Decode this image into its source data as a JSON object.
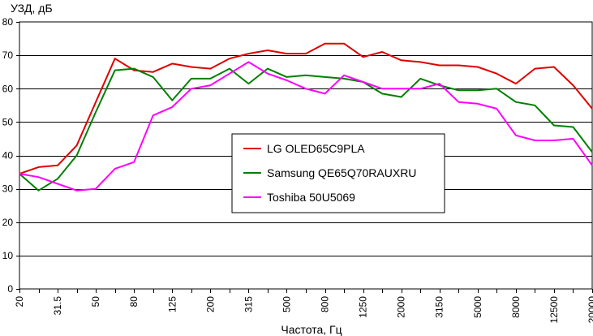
{
  "chart_data": {
    "type": "line",
    "ylabel": "УЗД, дБ",
    "xlabel": "Частота, Гц",
    "ylim": [
      0,
      80
    ],
    "yticks": [
      0,
      10,
      20,
      30,
      40,
      50,
      60,
      70,
      80
    ],
    "grid": true,
    "legend_position": "center",
    "categories": [
      20,
      25,
      31.5,
      40,
      50,
      63,
      80,
      100,
      125,
      160,
      200,
      250,
      315,
      400,
      500,
      630,
      800,
      1000,
      1250,
      1600,
      2000,
      2500,
      3150,
      4000,
      5000,
      6300,
      8000,
      10000,
      12500,
      16000,
      20000
    ],
    "category_labels": [
      "20",
      "",
      "31.5",
      "",
      "50",
      "",
      "80",
      "",
      "125",
      "",
      "200",
      "",
      "315",
      "",
      "500",
      "",
      "800",
      "",
      "1250",
      "",
      "2000",
      "",
      "3150",
      "",
      "5000",
      "",
      "8000",
      "",
      "12500",
      "",
      "20000"
    ],
    "series": [
      {
        "name": "LG OLED65C9PLA",
        "color": "#e00000",
        "values": [
          34.5,
          36.5,
          37,
          43,
          56,
          69,
          65.5,
          65,
          67.5,
          66.5,
          66,
          69,
          70.5,
          71.5,
          70.5,
          70.5,
          73.5,
          73.5,
          69.5,
          71,
          68.5,
          68,
          67,
          67,
          66.5,
          64.5,
          61.5,
          66,
          66.5,
          61,
          54
        ]
      },
      {
        "name": "Samsung QE65Q70RAUXRU",
        "color": "#008000",
        "values": [
          34.5,
          29.5,
          33,
          40,
          53,
          65.5,
          66,
          63.5,
          56.5,
          63,
          63,
          66,
          61.5,
          66,
          63.5,
          64,
          63.5,
          63,
          62,
          58.5,
          57.5,
          63,
          61,
          59.5,
          59.5,
          60,
          56,
          55,
          49,
          48.5,
          41
        ]
      },
      {
        "name": "Toshiba 50U5069",
        "color": "#ff00ff",
        "values": [
          34.5,
          33.5,
          31.5,
          29.5,
          30,
          36,
          38,
          52,
          54.5,
          60,
          61,
          64.5,
          68,
          64.5,
          62.5,
          60,
          58.5,
          64,
          62,
          60,
          60,
          60,
          61.5,
          56,
          55.5,
          54,
          46,
          44.5,
          44.5,
          45,
          37
        ]
      }
    ]
  }
}
